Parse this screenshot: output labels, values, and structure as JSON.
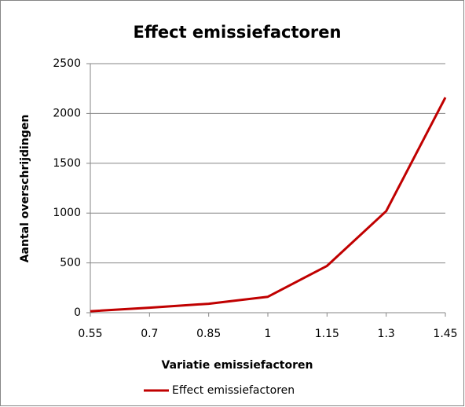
{
  "chart_data": {
    "type": "line",
    "title": "Effect emissiefactoren",
    "xlabel": "Variatie emissiefactoren",
    "ylabel": "Aantal overschrijdingen",
    "x": [
      0.55,
      0.7,
      0.85,
      1,
      1.15,
      1.3,
      1.45
    ],
    "series": [
      {
        "name": "Effect emissiefactoren",
        "color": "#c00000",
        "values": [
          15,
          50,
          90,
          160,
          470,
          1020,
          2160
        ]
      }
    ],
    "xlim": [
      0.55,
      1.45
    ],
    "xticks": [
      0.55,
      0.7,
      0.85,
      1,
      1.15,
      1.3,
      1.45
    ],
    "ylim": [
      0,
      2500
    ],
    "yticks": [
      0,
      500,
      1000,
      1500,
      2000,
      2500
    ],
    "grid": true,
    "legend": "bottom"
  }
}
